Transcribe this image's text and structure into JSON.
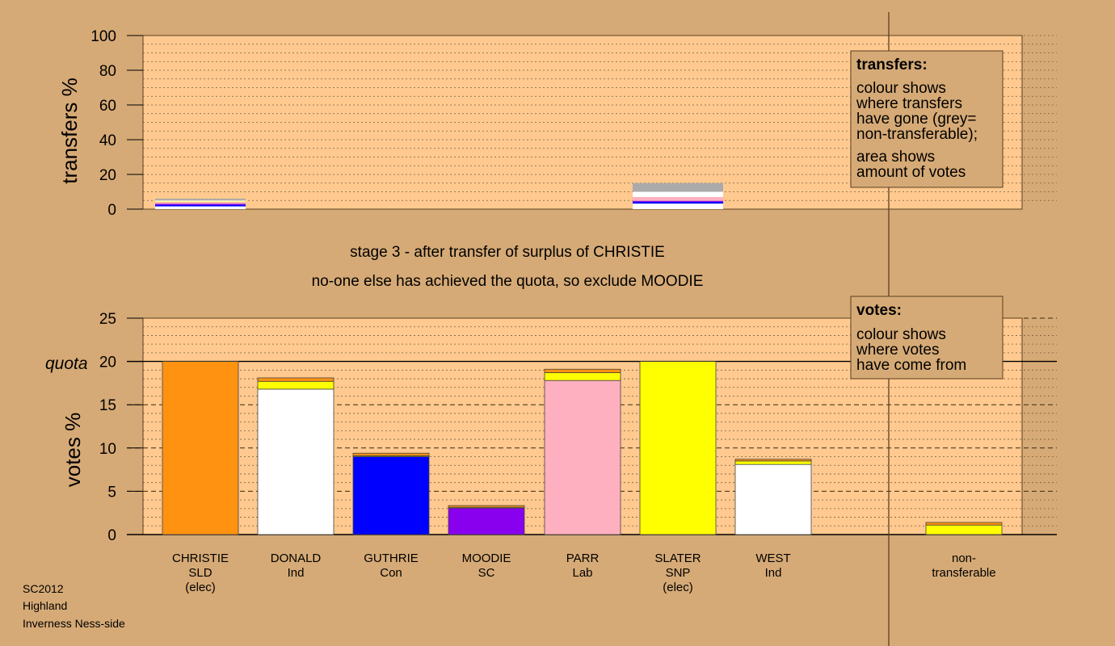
{
  "stage": {
    "line1": "stage 3 - after transfer of surplus of CHRISTIE",
    "line2": "no-one else has achieved the quota, so exclude MOODIE"
  },
  "footer": {
    "line1": "SC2012",
    "line2": "Highland",
    "line3": "Inverness Ness-side"
  },
  "legends": {
    "transfers": {
      "title": "transfers:",
      "lines": [
        "colour shows",
        "where transfers",
        "have gone (grey=",
        "non-transferable);"
      ],
      "lines2": [
        "area shows",
        "amount of votes"
      ]
    },
    "votes": {
      "title": "votes:",
      "lines": [
        "colour shows",
        "where votes",
        "have come from"
      ]
    }
  },
  "colors": {
    "background": "#d6aa76",
    "plot": "#ffc98f",
    "SLD": "#ff9210",
    "Ind_DONALD": "#ffffff",
    "Con": "#0000ff",
    "SC": "#8800ee",
    "Lab": "#ffb0c0",
    "SNP": "#ffff00",
    "Ind_WEST": "#ffffff",
    "nontransferable": "#aaaaaa"
  },
  "chart_data": [
    {
      "type": "bar",
      "stacked": true,
      "ylabel": "transfers %",
      "ylim": [
        0,
        100
      ],
      "yticks": [
        0,
        20,
        40,
        60,
        80,
        100
      ],
      "grid": true,
      "categories": [
        "CHRISTIE",
        "DONALD",
        "GUTHRIE",
        "MOODIE",
        "PARR",
        "SLATER",
        "WEST",
        "non-transferable"
      ],
      "series": [
        {
          "color_key": "Ind_DONALD",
          "values": [
            1.6,
            0,
            0,
            0,
            0,
            3.2,
            0,
            0
          ]
        },
        {
          "color_key": "Con",
          "values": [
            0.9,
            0,
            0,
            0,
            0,
            1.1,
            0,
            0
          ]
        },
        {
          "color_key": "SC",
          "values": [
            0.6,
            0,
            0,
            0,
            0,
            0.5,
            0,
            0
          ]
        },
        {
          "color_key": "Lab",
          "values": [
            1.0,
            0,
            0,
            0,
            0,
            2.2,
            0,
            0
          ]
        },
        {
          "color_key": "SNP",
          "values": [
            0.3,
            0,
            0,
            0,
            0,
            0,
            0,
            0
          ]
        },
        {
          "color_key": "Ind_WEST",
          "values": [
            0.6,
            0,
            0,
            0,
            0,
            3.0,
            0,
            0
          ]
        },
        {
          "color_key": "nontransferable",
          "values": [
            1.0,
            0,
            0,
            0,
            0,
            5.0,
            0,
            0
          ]
        }
      ]
    },
    {
      "type": "bar",
      "stacked": true,
      "ylabel": "votes %",
      "ylim": [
        0,
        25
      ],
      "yticks": [
        0,
        5,
        10,
        15,
        20,
        25
      ],
      "quota": 20,
      "quota_label": "quota",
      "grid": true,
      "categories": [
        {
          "name": "CHRISTIE",
          "party": "SLD",
          "note": "(elec)"
        },
        {
          "name": "DONALD",
          "party": "Ind",
          "note": ""
        },
        {
          "name": "GUTHRIE",
          "party": "Con",
          "note": ""
        },
        {
          "name": "MOODIE",
          "party": "SC",
          "note": ""
        },
        {
          "name": "PARR",
          "party": "Lab",
          "note": ""
        },
        {
          "name": "SLATER",
          "party": "SNP",
          "note": "(elec)"
        },
        {
          "name": "WEST",
          "party": "Ind",
          "note": ""
        },
        {
          "name": "",
          "party": "",
          "note": ""
        },
        {
          "name": "non-",
          "party": "transferable",
          "note": ""
        }
      ],
      "bars": [
        {
          "segments": [
            {
              "color_key": "SLD",
              "value": 20.0
            }
          ]
        },
        {
          "segments": [
            {
              "color_key": "Ind_DONALD",
              "value": 16.8
            },
            {
              "color_key": "SNP",
              "value": 0.9
            },
            {
              "color_key": "SLD",
              "value": 0.4
            }
          ]
        },
        {
          "segments": [
            {
              "color_key": "Con",
              "value": 9.0
            },
            {
              "color_key": "SNP",
              "value": 0.1
            },
            {
              "color_key": "SLD",
              "value": 0.3
            }
          ]
        },
        {
          "segments": [
            {
              "color_key": "SC",
              "value": 3.1
            },
            {
              "color_key": "SNP",
              "value": 0.05
            },
            {
              "color_key": "SLD",
              "value": 0.2
            }
          ]
        },
        {
          "segments": [
            {
              "color_key": "Lab",
              "value": 17.8
            },
            {
              "color_key": "SNP",
              "value": 0.9
            },
            {
              "color_key": "SLD",
              "value": 0.4
            }
          ]
        },
        {
          "segments": [
            {
              "color_key": "SNP",
              "value": 20.0
            }
          ]
        },
        {
          "segments": [
            {
              "color_key": "Ind_WEST",
              "value": 8.1
            },
            {
              "color_key": "SNP",
              "value": 0.4
            },
            {
              "color_key": "SLD",
              "value": 0.2
            }
          ]
        },
        {
          "segments": []
        },
        {
          "segments": [
            {
              "color_key": "SNP",
              "value": 1.1
            },
            {
              "color_key": "SLD",
              "value": 0.3
            }
          ]
        }
      ]
    }
  ]
}
